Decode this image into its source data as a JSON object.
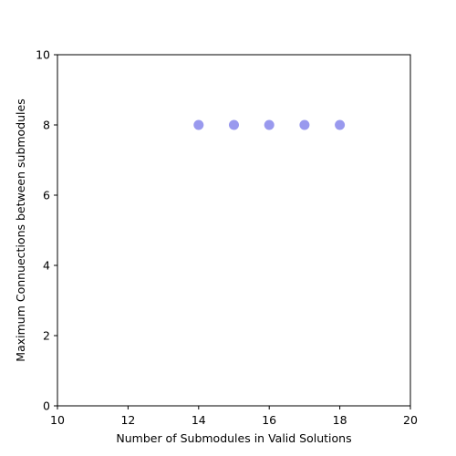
{
  "chart_data": {
    "type": "scatter",
    "title": "",
    "xlabel": "Number of Submodules in Valid Solutions",
    "ylabel": "Maximum Connuections between submodules",
    "xlim": [
      10,
      20
    ],
    "ylim": [
      0,
      10
    ],
    "xticks": [
      10,
      12,
      14,
      16,
      18,
      20
    ],
    "yticks": [
      0,
      2,
      4,
      6,
      8,
      10
    ],
    "grid": false,
    "series": [
      {
        "color": "#9999ee",
        "points": [
          {
            "x": 14,
            "y": 8
          },
          {
            "x": 15,
            "y": 8
          },
          {
            "x": 16,
            "y": 8
          },
          {
            "x": 17,
            "y": 8
          },
          {
            "x": 18,
            "y": 8
          }
        ]
      }
    ]
  }
}
